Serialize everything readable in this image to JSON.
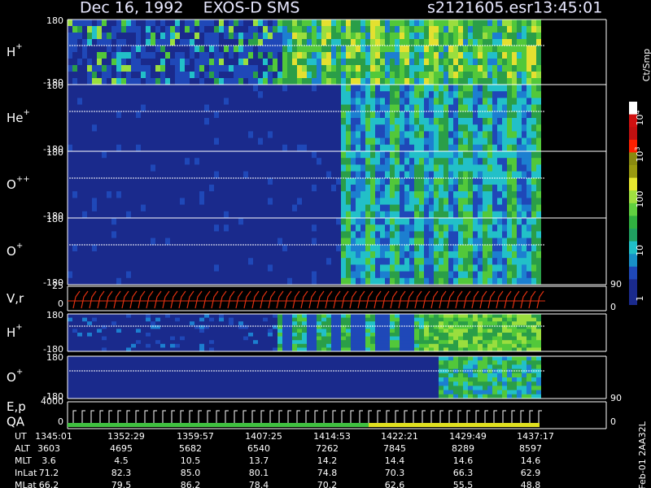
{
  "header": {
    "title": "Dec 16, 1992    EXOS-D SMS",
    "file": "s2121605.esr",
    "time": "13:45:01"
  },
  "panels": [
    {
      "ion": "H",
      "charge": "+",
      "ticks": [
        "180",
        "-180"
      ]
    },
    {
      "ion": "He",
      "charge": "+",
      "ticks": [
        "180",
        "-180"
      ]
    },
    {
      "ion": "O",
      "charge": "++",
      "ticks": [
        "180",
        "-180"
      ]
    },
    {
      "ion": "O",
      "charge": "+",
      "ticks": [
        "180",
        "-180"
      ]
    },
    {
      "ion": "V,r",
      "charge": "",
      "ticks": [
        "25",
        "0"
      ],
      "right_ticks": [
        "90",
        "0"
      ]
    },
    {
      "ion": "H",
      "charge": "+",
      "ticks": [
        "180",
        "-180"
      ]
    },
    {
      "ion": "O",
      "charge": "+",
      "ticks": [
        "180",
        "-180"
      ],
      "right_ticks": [
        "90"
      ]
    },
    {
      "ion": "E,p",
      "charge": "",
      "ticks": [
        "4000",
        "0"
      ],
      "right_ticks": [
        "0"
      ],
      "sub_label": "QA"
    }
  ],
  "colorbar": {
    "unit": "Ct/Smp",
    "labels": [
      {
        "base": "10",
        "exp": "4"
      },
      {
        "base": "10",
        "exp": "3"
      },
      {
        "base": "100",
        "exp": ""
      },
      {
        "base": "10",
        "exp": ""
      },
      {
        "base": "1",
        "exp": ""
      }
    ]
  },
  "table": {
    "rows": [
      [
        "UT",
        "1345:01",
        "1352:29",
        "1359:57",
        "1407:25",
        "1414:53",
        "1422:21",
        "1429:49",
        "1437:17"
      ],
      [
        "ALT",
        "3603",
        "4695",
        "5682",
        "6540",
        "7262",
        "7845",
        "8289",
        "8597"
      ],
      [
        "MLT",
        "3.6",
        "4.5",
        "10.5",
        "13.7",
        "14.2",
        "14.4",
        "14.6",
        "14.6"
      ],
      [
        "InLat",
        "71.2",
        "82.3",
        "85.0",
        "80.1",
        "74.8",
        "70.3",
        "66.3",
        "62.9"
      ],
      [
        "MLat",
        "66.2",
        "79.5",
        "86.2",
        "78.4",
        "70.2",
        "62.6",
        "55.5",
        "48.8"
      ]
    ]
  },
  "footer": "Feb-01 2AA32L"
}
